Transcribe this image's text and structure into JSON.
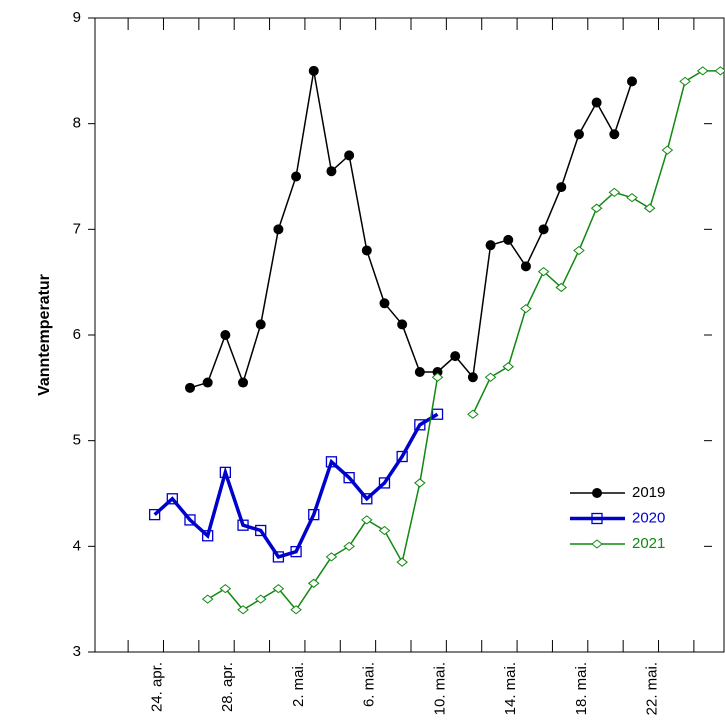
{
  "chart_data": {
    "type": "line",
    "y_label": "Vanntemperatur",
    "categories": [
      null,
      null,
      null,
      null,
      "24. apr.",
      null,
      null,
      null,
      "28. apr.",
      null,
      null,
      null,
      "2. mai.",
      null,
      null,
      null,
      "6. mai.",
      null,
      null,
      null,
      "10. mai.",
      null,
      null,
      null,
      "14. mai.",
      null,
      null,
      null,
      "18. mai.",
      null,
      null,
      null,
      "22. mai.",
      null,
      null,
      null
    ],
    "series": [
      {
        "name": "2019",
        "color": "#000000",
        "marker": "circle",
        "values": [
          null,
          null,
          null,
          null,
          null,
          5.5,
          5.55,
          6.0,
          5.55,
          6.1,
          7.0,
          7.5,
          8.5,
          7.55,
          7.7,
          6.8,
          6.3,
          6.1,
          5.65,
          5.65,
          5.8,
          5.6,
          6.85,
          6.9,
          6.65,
          7.0,
          7.4,
          7.9,
          8.2,
          7.9,
          8.4,
          null,
          null,
          null,
          null,
          null
        ]
      },
      {
        "name": "2020",
        "color": "#0000cc",
        "marker": "square",
        "values": [
          null,
          null,
          null,
          4.3,
          4.45,
          4.25,
          4.1,
          4.7,
          4.2,
          4.15,
          3.9,
          3.95,
          4.3,
          4.8,
          4.65,
          4.45,
          4.6,
          4.85,
          5.15,
          5.25,
          null,
          null,
          null,
          null,
          null,
          null,
          null,
          null,
          null,
          null,
          null,
          null,
          null,
          null,
          null,
          null
        ]
      },
      {
        "name": "2021",
        "color": "#118811",
        "marker": "diamond",
        "values": [
          null,
          null,
          null,
          null,
          null,
          null,
          3.5,
          3.6,
          3.4,
          3.5,
          3.6,
          3.4,
          3.65,
          3.9,
          4.0,
          4.25,
          4.15,
          3.85,
          4.6,
          5.6,
          null,
          5.25,
          5.6,
          5.7,
          6.25,
          6.6,
          6.45,
          6.8,
          7.2,
          7.35,
          7.3,
          7.2,
          7.75,
          8.4,
          8.5,
          8.5
        ]
      }
    ],
    "ylim": [
      3,
      9
    ],
    "yticks": [
      3,
      4,
      5,
      6,
      7,
      8,
      9
    ]
  }
}
